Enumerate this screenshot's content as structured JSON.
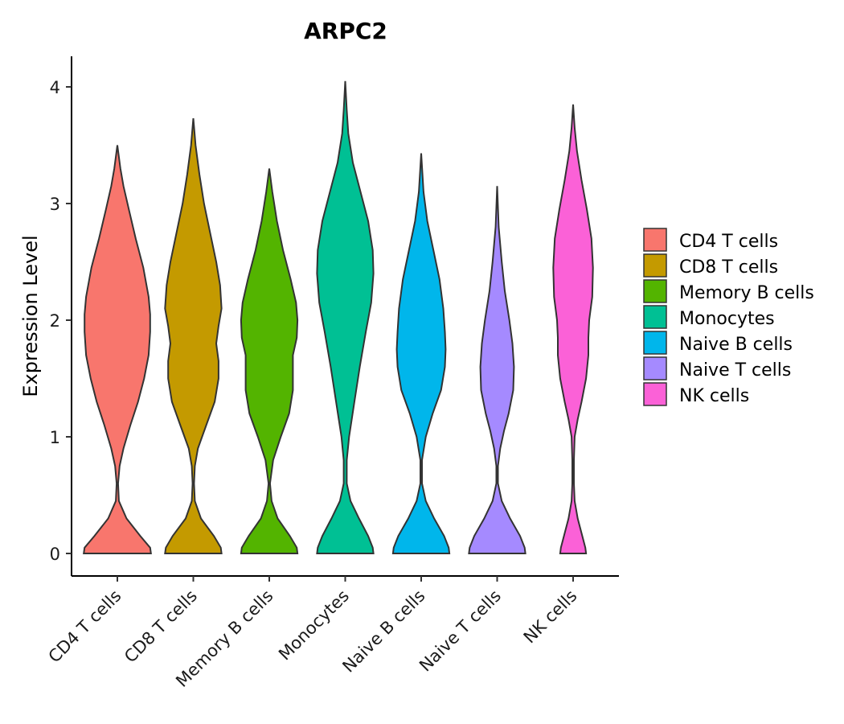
{
  "chart_data": {
    "type": "violin",
    "title": "ARPC2",
    "xlabel": "",
    "ylabel": "Expression Level",
    "ylim": [
      -0.2,
      4.25
    ],
    "yticks": [
      0,
      1,
      2,
      3,
      4
    ],
    "legend_position": "right",
    "categories": [
      "CD4 T cells",
      "CD8 T cells",
      "Memory B cells",
      "Monocytes",
      "Naive B cells",
      "Naive T cells",
      "NK cells"
    ],
    "colors": [
      "#F8766D",
      "#C49A00",
      "#53B400",
      "#00C094",
      "#00B6EB",
      "#A58AFF",
      "#FB61D7"
    ],
    "series": [
      {
        "name": "CD4 T cells",
        "max": 3.5,
        "half_width_max": 0.44,
        "profile": [
          [
            0,
            0.44
          ],
          [
            0.05,
            0.43
          ],
          [
            0.15,
            0.3
          ],
          [
            0.3,
            0.12
          ],
          [
            0.45,
            0.02
          ],
          [
            0.6,
            0.01
          ],
          [
            0.75,
            0.03
          ],
          [
            0.9,
            0.08
          ],
          [
            1.1,
            0.17
          ],
          [
            1.3,
            0.27
          ],
          [
            1.5,
            0.35
          ],
          [
            1.7,
            0.41
          ],
          [
            1.9,
            0.43
          ],
          [
            2.05,
            0.43
          ],
          [
            2.2,
            0.41
          ],
          [
            2.45,
            0.34
          ],
          [
            2.7,
            0.24
          ],
          [
            2.95,
            0.15
          ],
          [
            3.15,
            0.08
          ],
          [
            3.3,
            0.04
          ],
          [
            3.5,
            0.0
          ]
        ]
      },
      {
        "name": "CD8 T cells",
        "max": 3.73,
        "half_width_max": 0.37,
        "profile": [
          [
            0,
            0.37
          ],
          [
            0.05,
            0.36
          ],
          [
            0.15,
            0.27
          ],
          [
            0.3,
            0.1
          ],
          [
            0.45,
            0.02
          ],
          [
            0.6,
            0.01
          ],
          [
            0.75,
            0.02
          ],
          [
            0.9,
            0.06
          ],
          [
            1.1,
            0.17
          ],
          [
            1.3,
            0.28
          ],
          [
            1.5,
            0.33
          ],
          [
            1.65,
            0.33
          ],
          [
            1.8,
            0.3
          ],
          [
            1.95,
            0.33
          ],
          [
            2.1,
            0.37
          ],
          [
            2.3,
            0.35
          ],
          [
            2.5,
            0.3
          ],
          [
            2.75,
            0.22
          ],
          [
            3.0,
            0.14
          ],
          [
            3.25,
            0.08
          ],
          [
            3.5,
            0.03
          ],
          [
            3.73,
            0.0
          ]
        ]
      },
      {
        "name": "Memory B cells",
        "max": 3.3,
        "half_width_max": 0.37,
        "profile": [
          [
            0,
            0.37
          ],
          [
            0.05,
            0.36
          ],
          [
            0.15,
            0.27
          ],
          [
            0.3,
            0.11
          ],
          [
            0.45,
            0.03
          ],
          [
            0.6,
            0.01
          ],
          [
            0.8,
            0.05
          ],
          [
            1.0,
            0.15
          ],
          [
            1.2,
            0.26
          ],
          [
            1.4,
            0.31
          ],
          [
            1.55,
            0.31
          ],
          [
            1.7,
            0.31
          ],
          [
            1.85,
            0.36
          ],
          [
            2.0,
            0.37
          ],
          [
            2.15,
            0.35
          ],
          [
            2.35,
            0.28
          ],
          [
            2.6,
            0.18
          ],
          [
            2.85,
            0.1
          ],
          [
            3.1,
            0.04
          ],
          [
            3.3,
            0.0
          ]
        ]
      },
      {
        "name": "Monocytes",
        "max": 4.05,
        "half_width_max": 0.37,
        "profile": [
          [
            0,
            0.37
          ],
          [
            0.05,
            0.36
          ],
          [
            0.15,
            0.3
          ],
          [
            0.3,
            0.18
          ],
          [
            0.45,
            0.07
          ],
          [
            0.6,
            0.02
          ],
          [
            0.8,
            0.02
          ],
          [
            1.0,
            0.05
          ],
          [
            1.3,
            0.12
          ],
          [
            1.6,
            0.19
          ],
          [
            1.9,
            0.27
          ],
          [
            2.15,
            0.34
          ],
          [
            2.4,
            0.37
          ],
          [
            2.6,
            0.36
          ],
          [
            2.85,
            0.3
          ],
          [
            3.1,
            0.2
          ],
          [
            3.35,
            0.1
          ],
          [
            3.6,
            0.04
          ],
          [
            3.8,
            0.02
          ],
          [
            4.05,
            0.0
          ]
        ]
      },
      {
        "name": "Naive B cells",
        "max": 3.43,
        "half_width_max": 0.37,
        "profile": [
          [
            0,
            0.37
          ],
          [
            0.05,
            0.36
          ],
          [
            0.15,
            0.3
          ],
          [
            0.3,
            0.17
          ],
          [
            0.45,
            0.06
          ],
          [
            0.6,
            0.01
          ],
          [
            0.8,
            0.01
          ],
          [
            1.0,
            0.06
          ],
          [
            1.2,
            0.15
          ],
          [
            1.4,
            0.26
          ],
          [
            1.6,
            0.31
          ],
          [
            1.75,
            0.32
          ],
          [
            1.9,
            0.31
          ],
          [
            2.1,
            0.29
          ],
          [
            2.35,
            0.24
          ],
          [
            2.6,
            0.16
          ],
          [
            2.85,
            0.08
          ],
          [
            3.1,
            0.03
          ],
          [
            3.43,
            0.0
          ]
        ]
      },
      {
        "name": "Naive T cells",
        "max": 3.15,
        "half_width_max": 0.37,
        "profile": [
          [
            0,
            0.37
          ],
          [
            0.05,
            0.36
          ],
          [
            0.15,
            0.3
          ],
          [
            0.3,
            0.17
          ],
          [
            0.45,
            0.06
          ],
          [
            0.6,
            0.01
          ],
          [
            0.75,
            0.01
          ],
          [
            0.9,
            0.04
          ],
          [
            1.05,
            0.09
          ],
          [
            1.2,
            0.15
          ],
          [
            1.4,
            0.21
          ],
          [
            1.6,
            0.22
          ],
          [
            1.8,
            0.2
          ],
          [
            2.0,
            0.16
          ],
          [
            2.25,
            0.1
          ],
          [
            2.5,
            0.06
          ],
          [
            2.8,
            0.02
          ],
          [
            3.15,
            0.0
          ]
        ]
      },
      {
        "name": "NK cells",
        "max": 3.85,
        "half_width_max": 0.26,
        "profile": [
          [
            0,
            0.17
          ],
          [
            0.05,
            0.16
          ],
          [
            0.15,
            0.12
          ],
          [
            0.3,
            0.06
          ],
          [
            0.45,
            0.02
          ],
          [
            0.6,
            0.01
          ],
          [
            0.8,
            0.01
          ],
          [
            1.0,
            0.02
          ],
          [
            1.15,
            0.06
          ],
          [
            1.3,
            0.11
          ],
          [
            1.5,
            0.17
          ],
          [
            1.7,
            0.2
          ],
          [
            1.85,
            0.2
          ],
          [
            2.0,
            0.21
          ],
          [
            2.2,
            0.25
          ],
          [
            2.45,
            0.26
          ],
          [
            2.7,
            0.24
          ],
          [
            2.95,
            0.18
          ],
          [
            3.2,
            0.11
          ],
          [
            3.45,
            0.05
          ],
          [
            3.65,
            0.02
          ],
          [
            3.85,
            0.0
          ]
        ]
      }
    ]
  }
}
